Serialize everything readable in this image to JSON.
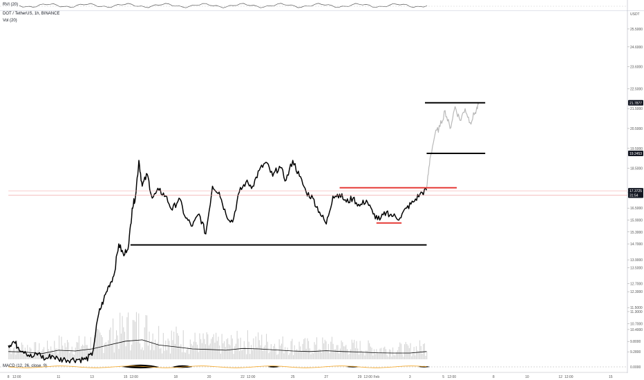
{
  "header": {
    "symbol": "DOT / TetherUS, 1h, BINANCE",
    "volume_indicator": "Vol (20)",
    "top_indicator": "RVI (20)",
    "bottom_indicator": "MACD (12, 26, close, 9)"
  },
  "colors": {
    "price_line": "#000000",
    "volume_bars": "#d6d6d6",
    "volume_ma": "#000000",
    "level_line": "#000000",
    "highlight_line": "#e53935",
    "current_price_line": "#ef9a9a",
    "macd_area": "#000000",
    "macd_signal": "#f5a623",
    "label_bg": "#131722",
    "label_text": "#ffffff"
  },
  "chart_data": {
    "type": "line",
    "title": "DOT / TetherUS, 1h, BINANCE",
    "xlabel": "",
    "ylabel": "",
    "ylim": [
      8.8,
      26.4
    ],
    "grid": false,
    "x_ticks": [
      {
        "label": "8",
        "x": 0.0
      },
      {
        "label": "12:00",
        "x": 0.5
      },
      {
        "label": "11",
        "x": 3.0
      },
      {
        "label": "13",
        "x": 5.0
      },
      {
        "label": "15",
        "x": 7.0
      },
      {
        "label": "12:00",
        "x": 7.5
      },
      {
        "label": "18",
        "x": 10.0
      },
      {
        "label": "20",
        "x": 12.0
      },
      {
        "label": "22",
        "x": 14.0
      },
      {
        "label": "12:00",
        "x": 14.5
      },
      {
        "label": "25",
        "x": 17.0
      },
      {
        "label": "27",
        "x": 19.0
      },
      {
        "label": "29",
        "x": 21.0
      },
      {
        "label": "12:00",
        "x": 21.5
      },
      {
        "label": "Feb",
        "x": 22.0
      },
      {
        "label": "3",
        "x": 24.0
      },
      {
        "label": "5",
        "x": 26.0
      },
      {
        "label": "12:00",
        "x": 26.5
      },
      {
        "label": "8",
        "x": 29.0
      },
      {
        "label": "10",
        "x": 31.0
      },
      {
        "label": "12",
        "x": 33.0
      },
      {
        "label": "12:00",
        "x": 33.5
      },
      {
        "label": "15",
        "x": 36.0
      }
    ],
    "y_ticks": [
      "25.5000",
      "24.6000",
      "23.6000",
      "22.5000",
      "21.5000",
      "20.5000",
      "19.5000",
      "18.5000",
      "17.3000",
      "16.5000",
      "15.9000",
      "15.3000",
      "14.7000",
      "13.9000",
      "13.5000",
      "12.7000",
      "12.3000",
      "11.5000",
      "11.3000",
      "10.7000",
      "10.4000",
      "9.8000",
      "9.2800"
    ],
    "y_tick_values": [
      25.5,
      24.6,
      23.6,
      22.5,
      21.5,
      20.5,
      19.5,
      18.5,
      17.3,
      16.5,
      15.9,
      15.3,
      14.7,
      13.9,
      13.5,
      12.7,
      12.3,
      11.5,
      11.3,
      10.7,
      10.4,
      9.8,
      9.28
    ],
    "series": [
      {
        "role": "price",
        "x": [
          0.0,
          0.3,
          0.6,
          1.0,
          1.4,
          1.8,
          2.2,
          2.6,
          3.0,
          3.4,
          3.8,
          4.2,
          4.6,
          5.0,
          5.4,
          5.7,
          6.0,
          6.3,
          6.6,
          6.9,
          7.2,
          7.4,
          7.6,
          7.8,
          8.0,
          8.3,
          8.6,
          9.0,
          9.4,
          9.8,
          10.2,
          10.6,
          11.0,
          11.4,
          11.8,
          12.2,
          12.6,
          13.0,
          13.4,
          13.8,
          14.2,
          14.6,
          15.0,
          15.4,
          15.8,
          16.2,
          16.6,
          17.0,
          17.4,
          17.8,
          18.2,
          18.6,
          19.0,
          19.4,
          19.8,
          20.2,
          20.6,
          21.0,
          21.4,
          21.8,
          22.2,
          22.6,
          23.0,
          23.4,
          23.8,
          24.2,
          24.6,
          25.0
        ],
        "values": [
          9.6,
          9.8,
          9.5,
          9.3,
          9.0,
          9.2,
          8.9,
          9.1,
          8.9,
          8.9,
          8.9,
          8.9,
          8.9,
          9.1,
          11.2,
          11.9,
          12.6,
          13.1,
          14.7,
          14.1,
          14.7,
          16.5,
          17.1,
          18.9,
          17.6,
          18.2,
          17.0,
          17.4,
          17.1,
          16.4,
          17.0,
          16.0,
          15.6,
          16.2,
          15.2,
          17.6,
          17.3,
          16.2,
          15.8,
          17.3,
          17.8,
          17.6,
          18.4,
          18.8,
          18.1,
          18.6,
          17.9,
          18.9,
          18.1,
          17.3,
          17.0,
          16.3,
          15.7,
          17.1,
          17.2,
          16.8,
          17.0,
          16.6,
          16.9,
          16.2,
          15.9,
          16.3,
          16.1,
          16.0,
          16.5,
          16.8,
          17.2,
          17.4
        ]
      },
      {
        "role": "projection",
        "x": [
          25.0,
          25.2,
          25.5,
          25.8,
          26.1,
          26.4,
          26.7,
          27.0,
          27.3,
          27.6,
          27.9,
          28.1
        ],
        "values": [
          17.5,
          19.0,
          20.2,
          20.6,
          21.4,
          20.5,
          21.6,
          20.9,
          21.5,
          20.8,
          21.3,
          21.7
        ]
      },
      {
        "role": "volume_ma",
        "x": [
          0,
          1,
          2,
          3,
          4,
          5,
          6,
          7,
          8,
          9,
          10,
          11,
          12,
          13,
          14,
          15,
          16,
          17,
          18,
          19,
          20,
          21,
          22,
          23,
          24,
          25
        ],
        "values": [
          0.3,
          0.28,
          0.22,
          0.35,
          0.32,
          0.4,
          0.55,
          0.7,
          0.75,
          0.55,
          0.48,
          0.4,
          0.38,
          0.35,
          0.42,
          0.4,
          0.36,
          0.32,
          0.3,
          0.33,
          0.3,
          0.28,
          0.25,
          0.24,
          0.24,
          0.3
        ]
      }
    ],
    "levels": [
      {
        "label": "21.7877",
        "value": 21.79,
        "style": "black",
        "x_from": 24.9,
        "x_to": 28.5
      },
      {
        "label": "19.2453",
        "value": 19.25,
        "style": "black",
        "x_from": 25.0,
        "x_to": 28.5
      },
      {
        "label": "17.3725",
        "value": 17.37,
        "style": "current",
        "x_from": 0.0,
        "x_to": 28.5
      },
      {
        "label": "31:54",
        "value": 17.15,
        "style": "current",
        "x_from": 0.0,
        "x_to": 28.5
      },
      {
        "label": "",
        "value": 17.52,
        "style": "red",
        "x_from": 19.8,
        "x_to": 26.8
      },
      {
        "label": "",
        "value": 15.75,
        "style": "red",
        "x_from": 22.0,
        "x_to": 23.5
      },
      {
        "label": "",
        "value": 14.65,
        "style": "black",
        "x_from": 7.3,
        "x_to": 25.0
      }
    ],
    "axis_labels": {
      "usdt": "USDT"
    }
  }
}
